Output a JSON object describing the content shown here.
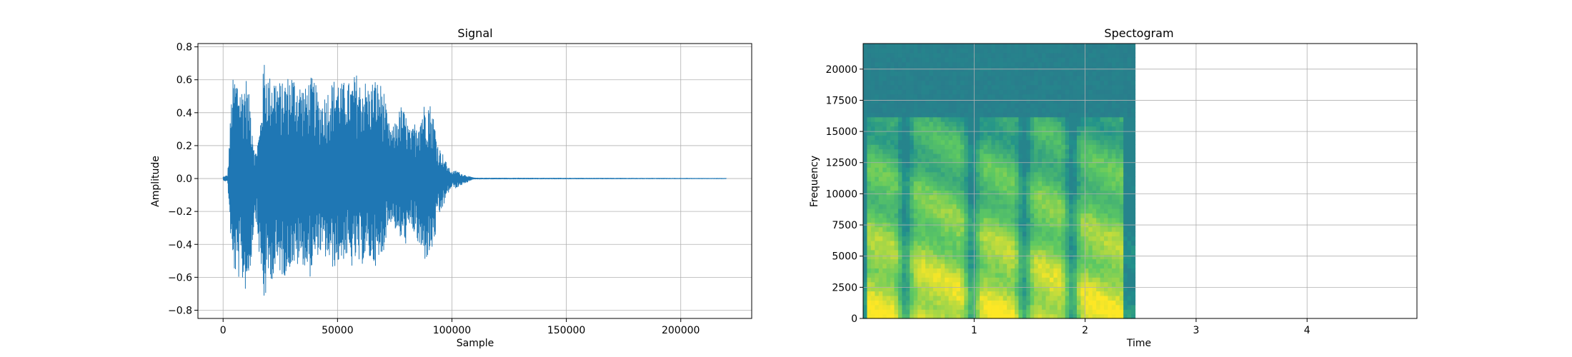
{
  "chart_data": [
    {
      "type": "line",
      "title": "Signal",
      "xlabel": "Sample",
      "ylabel": "Amplitude",
      "xlim": [
        -11000,
        231000
      ],
      "ylim": [
        -0.85,
        0.82
      ],
      "xticks": [
        0,
        50000,
        100000,
        150000,
        200000
      ],
      "xtick_labels": [
        "0",
        "50000",
        "100000",
        "150000",
        "200000"
      ],
      "yticks": [
        -0.8,
        -0.6,
        -0.4,
        -0.2,
        0.0,
        0.2,
        0.4,
        0.6,
        0.8
      ],
      "ytick_labels": [
        "−0.8",
        "−0.6",
        "−0.4",
        "−0.2",
        "0.0",
        "0.2",
        "0.4",
        "0.6",
        "0.8"
      ],
      "grid": true,
      "color": "#1f77b4",
      "series": [
        {
          "x": [
            0,
            2000,
            4000,
            6000,
            8000,
            10000,
            12000,
            14000,
            16000,
            18000,
            20000,
            22000,
            24000,
            26000,
            28000,
            30000,
            32000,
            34000,
            36000,
            38000,
            40000,
            42000,
            44000,
            46000,
            48000,
            50000,
            52000,
            54000,
            56000,
            58000,
            60000,
            62000,
            64000,
            66000,
            68000,
            70000,
            72000,
            74000,
            76000,
            78000,
            80000,
            82000,
            84000,
            86000,
            88000,
            90000,
            92000,
            94000,
            96000,
            98000,
            100000,
            102000,
            104000,
            106000,
            108000,
            110000,
            220000
          ],
          "upper": [
            0.01,
            0.02,
            0.6,
            0.63,
            0.55,
            0.62,
            0.45,
            0.15,
            0.3,
            0.75,
            0.62,
            0.64,
            0.6,
            0.58,
            0.62,
            0.65,
            0.6,
            0.58,
            0.55,
            0.62,
            0.6,
            0.48,
            0.5,
            0.55,
            0.6,
            0.62,
            0.58,
            0.6,
            0.57,
            0.65,
            0.58,
            0.6,
            0.55,
            0.62,
            0.58,
            0.57,
            0.35,
            0.3,
            0.38,
            0.45,
            0.38,
            0.28,
            0.35,
            0.4,
            0.46,
            0.48,
            0.38,
            0.2,
            0.15,
            0.08,
            0.04,
            0.05,
            0.03,
            0.02,
            0.01,
            0.003,
            0.001
          ],
          "lower": [
            -0.01,
            -0.02,
            -0.55,
            -0.6,
            -0.62,
            -0.69,
            -0.55,
            -0.2,
            -0.5,
            -0.78,
            -0.6,
            -0.62,
            -0.55,
            -0.6,
            -0.58,
            -0.52,
            -0.55,
            -0.5,
            -0.55,
            -0.6,
            -0.5,
            -0.45,
            -0.48,
            -0.5,
            -0.55,
            -0.52,
            -0.5,
            -0.48,
            -0.55,
            -0.5,
            -0.55,
            -0.48,
            -0.5,
            -0.52,
            -0.55,
            -0.45,
            -0.3,
            -0.25,
            -0.35,
            -0.38,
            -0.4,
            -0.3,
            -0.35,
            -0.45,
            -0.5,
            -0.48,
            -0.42,
            -0.25,
            -0.18,
            -0.1,
            -0.05,
            -0.06,
            -0.04,
            -0.03,
            -0.01,
            -0.003,
            -0.001
          ]
        }
      ]
    },
    {
      "type": "heatmap",
      "title": "Spectogram",
      "xlabel": "Time",
      "ylabel": "Frequency",
      "xlim": [
        0.0,
        4.99
      ],
      "ylim": [
        0,
        22050
      ],
      "data_extent_x": [
        0.0,
        2.45
      ],
      "xticks": [
        1,
        2,
        3,
        4
      ],
      "xtick_labels": [
        "1",
        "2",
        "3",
        "4"
      ],
      "yticks": [
        0,
        2500,
        5000,
        7500,
        10000,
        12500,
        15000,
        17500,
        20000
      ],
      "ytick_labels": [
        "0",
        "2500",
        "5000",
        "7500",
        "10000",
        "12500",
        "15000",
        "17500",
        "20000"
      ],
      "grid": true,
      "colormap": "viridis",
      "cutoff_frequency": 16000
    }
  ]
}
